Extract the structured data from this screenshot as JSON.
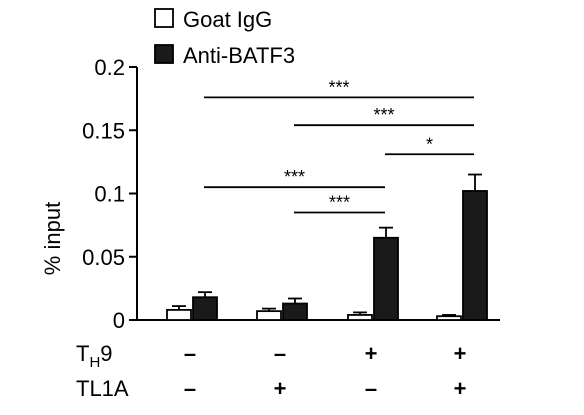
{
  "chart_data": {
    "type": "bar",
    "ylabel": "% input",
    "ylim": [
      0,
      0.2
    ],
    "yticks": [
      "0",
      "0.05",
      "0.1",
      "0.15",
      "0.2"
    ],
    "ytick_values": [
      0,
      0.05,
      0.1,
      0.15,
      0.2
    ],
    "legend": {
      "placement": "top-left",
      "entries": [
        "Goat IgG",
        "Anti-BATF3"
      ]
    },
    "series": [
      {
        "name": "Goat IgG",
        "color": "#ffffff",
        "values": [
          0.008,
          0.007,
          0.004,
          0.003
        ],
        "errors": [
          0.003,
          0.002,
          0.002,
          0.001
        ]
      },
      {
        "name": "Anti-BATF3",
        "color": "#1a1a1a",
        "values": [
          0.018,
          0.013,
          0.065,
          0.102
        ],
        "errors": [
          0.004,
          0.004,
          0.008,
          0.013
        ]
      }
    ],
    "conditions": {
      "row_labels": [
        {
          "main": "T",
          "sub": "H",
          "rest": "9"
        },
        {
          "main": "TL1A",
          "sub": "",
          "rest": ""
        }
      ],
      "values": [
        [
          "–",
          "–",
          "+",
          "+"
        ],
        [
          "–",
          "+",
          "–",
          "+"
        ]
      ]
    },
    "significance": [
      {
        "from": 0,
        "to": 3,
        "label": "***",
        "y": 0.176
      },
      {
        "from": 1,
        "to": 3,
        "label": "***",
        "y": 0.154
      },
      {
        "from": 2,
        "to": 3,
        "label": "*",
        "y": 0.131
      },
      {
        "from": 0,
        "to": 2,
        "label": "***",
        "y": 0.105
      },
      {
        "from": 1,
        "to": 2,
        "label": "***",
        "y": 0.085
      }
    ]
  }
}
